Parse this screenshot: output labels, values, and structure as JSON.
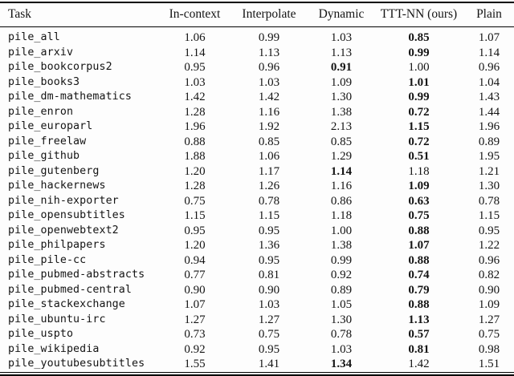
{
  "colors": {
    "text": "#141414",
    "rule": "#000000",
    "background": "#fdfdfd"
  },
  "table": {
    "columns": [
      "Task",
      "In-context",
      "Interpolate",
      "Dynamic",
      "TTT-NN (ours)",
      "Plain"
    ],
    "rows": [
      {
        "task": "pile_all",
        "values": [
          "1.06",
          "0.99",
          "1.03",
          "0.85",
          "1.07"
        ],
        "bold_index": 3
      },
      {
        "task": "pile_arxiv",
        "values": [
          "1.14",
          "1.13",
          "1.13",
          "0.99",
          "1.14"
        ],
        "bold_index": 3
      },
      {
        "task": "pile_bookcorpus2",
        "values": [
          "0.95",
          "0.96",
          "0.91",
          "1.00",
          "0.96"
        ],
        "bold_index": 2
      },
      {
        "task": "pile_books3",
        "values": [
          "1.03",
          "1.03",
          "1.09",
          "1.01",
          "1.04"
        ],
        "bold_index": 3
      },
      {
        "task": "pile_dm-mathematics",
        "values": [
          "1.42",
          "1.42",
          "1.30",
          "0.99",
          "1.43"
        ],
        "bold_index": 3
      },
      {
        "task": "pile_enron",
        "values": [
          "1.28",
          "1.16",
          "1.38",
          "0.72",
          "1.44"
        ],
        "bold_index": 3
      },
      {
        "task": "pile_europarl",
        "values": [
          "1.96",
          "1.92",
          "2.13",
          "1.15",
          "1.96"
        ],
        "bold_index": 3
      },
      {
        "task": "pile_freelaw",
        "values": [
          "0.88",
          "0.85",
          "0.85",
          "0.72",
          "0.89"
        ],
        "bold_index": 3
      },
      {
        "task": "pile_github",
        "values": [
          "1.88",
          "1.06",
          "1.29",
          "0.51",
          "1.95"
        ],
        "bold_index": 3
      },
      {
        "task": "pile_gutenberg",
        "values": [
          "1.20",
          "1.17",
          "1.14",
          "1.18",
          "1.21"
        ],
        "bold_index": 2
      },
      {
        "task": "pile_hackernews",
        "values": [
          "1.28",
          "1.26",
          "1.16",
          "1.09",
          "1.30"
        ],
        "bold_index": 3
      },
      {
        "task": "pile_nih-exporter",
        "values": [
          "0.75",
          "0.78",
          "0.86",
          "0.63",
          "0.78"
        ],
        "bold_index": 3
      },
      {
        "task": "pile_opensubtitles",
        "values": [
          "1.15",
          "1.15",
          "1.18",
          "0.75",
          "1.15"
        ],
        "bold_index": 3
      },
      {
        "task": "pile_openwebtext2",
        "values": [
          "0.95",
          "0.95",
          "1.00",
          "0.88",
          "0.95"
        ],
        "bold_index": 3
      },
      {
        "task": "pile_philpapers",
        "values": [
          "1.20",
          "1.36",
          "1.38",
          "1.07",
          "1.22"
        ],
        "bold_index": 3
      },
      {
        "task": "pile_pile-cc",
        "values": [
          "0.94",
          "0.95",
          "0.99",
          "0.88",
          "0.96"
        ],
        "bold_index": 3
      },
      {
        "task": "pile_pubmed-abstracts",
        "values": [
          "0.77",
          "0.81",
          "0.92",
          "0.74",
          "0.82"
        ],
        "bold_index": 3
      },
      {
        "task": "pile_pubmed-central",
        "values": [
          "0.90",
          "0.90",
          "0.89",
          "0.79",
          "0.90"
        ],
        "bold_index": 3
      },
      {
        "task": "pile_stackexchange",
        "values": [
          "1.07",
          "1.03",
          "1.05",
          "0.88",
          "1.09"
        ],
        "bold_index": 3
      },
      {
        "task": "pile_ubuntu-irc",
        "values": [
          "1.27",
          "1.27",
          "1.30",
          "1.13",
          "1.27"
        ],
        "bold_index": 3
      },
      {
        "task": "pile_uspto",
        "values": [
          "0.73",
          "0.75",
          "0.78",
          "0.57",
          "0.75"
        ],
        "bold_index": 3
      },
      {
        "task": "pile_wikipedia",
        "values": [
          "0.92",
          "0.95",
          "1.03",
          "0.81",
          "0.98"
        ],
        "bold_index": 3
      },
      {
        "task": "pile_youtubesubtitles",
        "values": [
          "1.55",
          "1.41",
          "1.34",
          "1.42",
          "1.51"
        ],
        "bold_index": 2
      }
    ]
  }
}
